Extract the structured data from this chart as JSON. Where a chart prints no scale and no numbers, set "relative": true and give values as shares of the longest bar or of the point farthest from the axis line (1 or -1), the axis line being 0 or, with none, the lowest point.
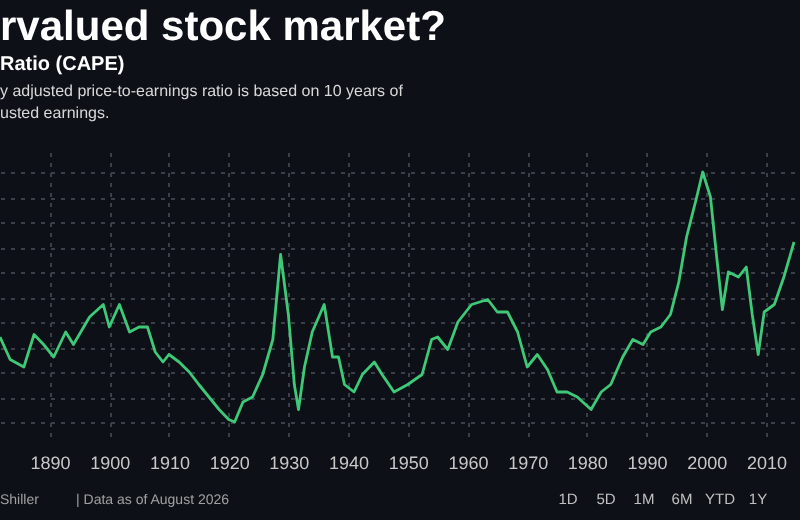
{
  "chart_data": {
    "type": "line",
    "title": "rvalued stock market?",
    "subtitle": "Ratio (CAPE)",
    "annotations": [
      "y adjusted price-to-earnings ratio is based on 10 years of",
      "usted earnings.",
      "Shiller",
      "| Data as of August 2026",
      "1D",
      "5D",
      "1M",
      "6M",
      "YTD",
      "1Y"
    ],
    "relative": true,
    "xlim": [
      1881.7,
      2015.7
    ],
    "xticks": [
      1890,
      1900,
      1910,
      1920,
      1930,
      1940,
      1950,
      1960,
      1970,
      1980,
      1990,
      2000,
      2010
    ],
    "grid": true,
    "legend": false,
    "marker": "none",
    "line_style": "solid",
    "series": [
      {
        "color": "#3ec878",
        "x": [
          1881.7,
          1883.4,
          1885.7,
          1887.4,
          1889.0,
          1890.7,
          1892.7,
          1894.0,
          1896.7,
          1899.0,
          1900.0,
          1901.7,
          1903.4,
          1905.0,
          1906.4,
          1907.7,
          1909.0,
          1910.0,
          1911.7,
          1913.4,
          1915.0,
          1916.7,
          1918.4,
          1920.0,
          1921.0,
          1922.4,
          1924.0,
          1925.7,
          1927.4,
          1928.7,
          1930.0,
          1931.0,
          1931.7,
          1932.7,
          1934.0,
          1936.0,
          1937.4,
          1938.4,
          1939.4,
          1941.0,
          1942.4,
          1944.4,
          1945.7,
          1947.7,
          1950.0,
          1952.4,
          1954.0,
          1955.0,
          1956.7,
          1958.4,
          1960.7,
          1963.4,
          1965.0,
          1966.7,
          1968.4,
          1970.0,
          1971.7,
          1973.4,
          1975.0,
          1976.7,
          1978.4,
          1980.7,
          1982.4,
          1984.0,
          1986.0,
          1987.7,
          1989.4,
          1990.7,
          1992.4,
          1994.0,
          1995.4,
          1996.7,
          1998.4,
          1999.4,
          2000.7,
          2001.7,
          2002.7,
          2003.7,
          2005.4,
          2006.7,
          2007.7,
          2008.7,
          2009.7,
          2011.4,
          2013.0,
          2014.7
        ],
        "values": [
          0.34,
          0.25,
          0.22,
          0.35,
          0.31,
          0.26,
          0.36,
          0.31,
          0.42,
          0.47,
          0.38,
          0.47,
          0.36,
          0.38,
          0.38,
          0.28,
          0.24,
          0.27,
          0.24,
          0.2,
          0.15,
          0.1,
          0.05,
          0.01,
          0,
          0.08,
          0.1,
          0.19,
          0.33,
          0.67,
          0.43,
          0.15,
          0.05,
          0.22,
          0.36,
          0.47,
          0.26,
          0.26,
          0.15,
          0.12,
          0.19,
          0.24,
          0.19,
          0.12,
          0.15,
          0.19,
          0.33,
          0.34,
          0.29,
          0.4,
          0.47,
          0.49,
          0.44,
          0.44,
          0.36,
          0.22,
          0.27,
          0.21,
          0.12,
          0.12,
          0.1,
          0.05,
          0.12,
          0.15,
          0.26,
          0.33,
          0.31,
          0.36,
          0.38,
          0.43,
          0.56,
          0.74,
          0.9,
          1,
          0.9,
          0.67,
          0.45,
          0.6,
          0.58,
          0.62,
          0.43,
          0.27,
          0.44,
          0.47,
          0.58,
          0.72
        ]
      }
    ]
  }
}
